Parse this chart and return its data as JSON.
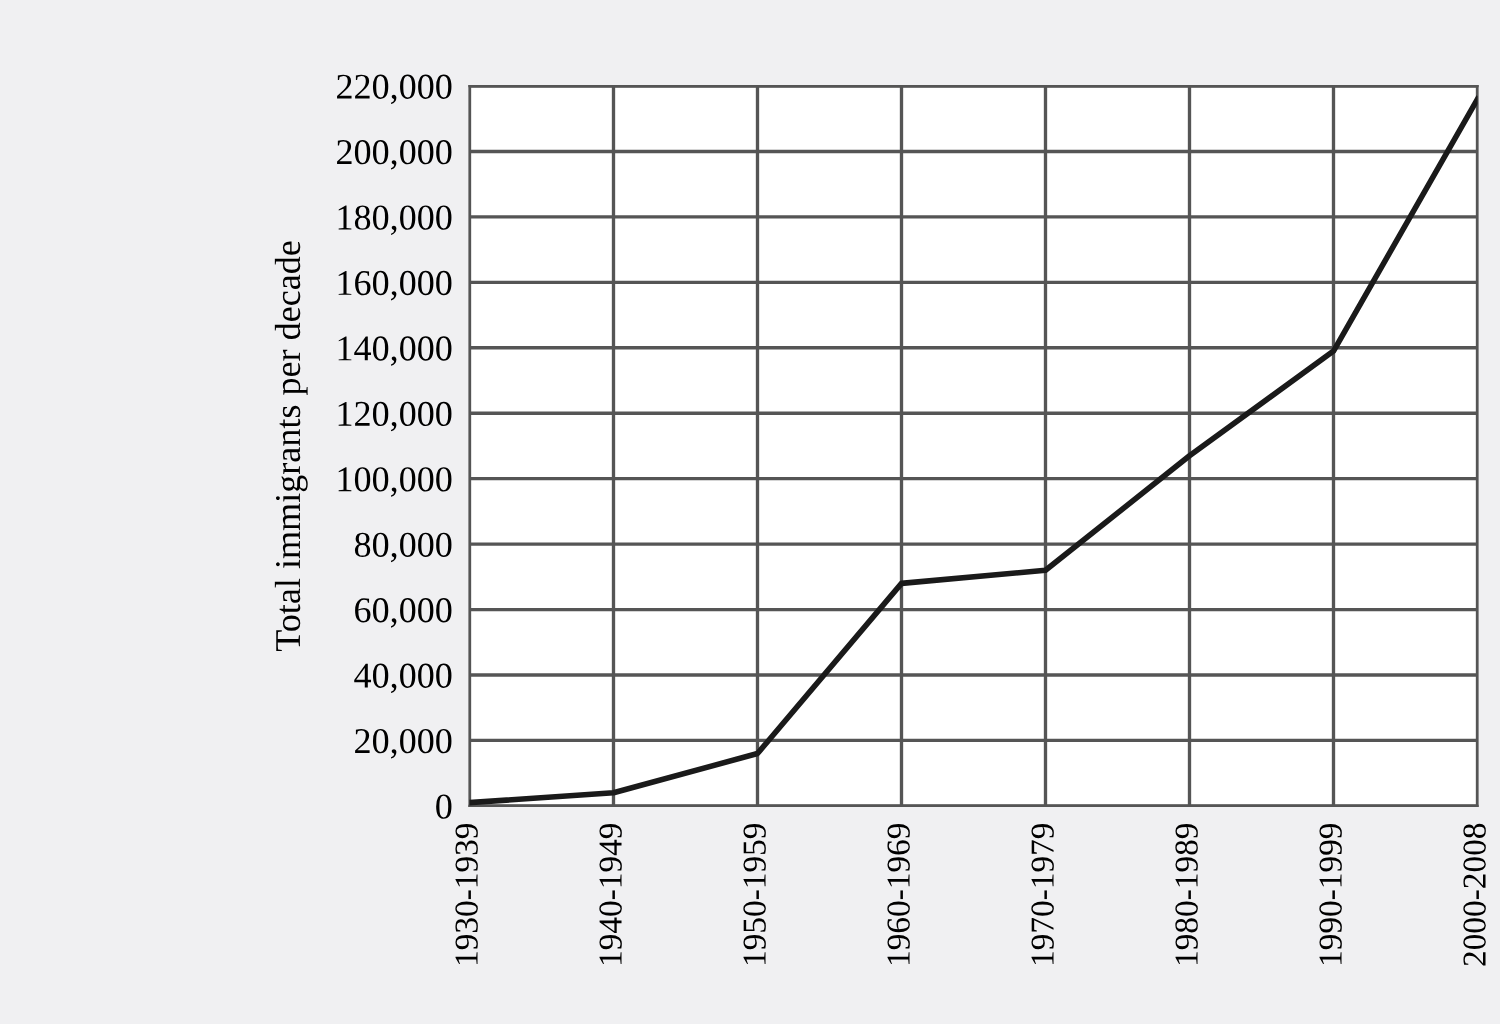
{
  "chart_data": {
    "type": "line",
    "ylabel": "Total immigrants per decade",
    "categories": [
      "1930-1939",
      "1940-1949",
      "1950-1959",
      "1960-1969",
      "1970-1979",
      "1980-1989",
      "1990-1999",
      "2000-2008"
    ],
    "series": [
      {
        "color": "#1a1a1a",
        "values": [
          1000,
          4000,
          16000,
          68000,
          72000,
          107000,
          139000,
          216000
        ]
      }
    ],
    "ylim": [
      0,
      220000
    ],
    "yticks": [
      {
        "value": 0,
        "label": "0"
      },
      {
        "value": 20000,
        "label": "20,000"
      },
      {
        "value": 40000,
        "label": "40,000"
      },
      {
        "value": 60000,
        "label": "60,000"
      },
      {
        "value": 80000,
        "label": "80,000"
      },
      {
        "value": 100000,
        "label": "100,000"
      },
      {
        "value": 120000,
        "label": "120,000"
      },
      {
        "value": 140000,
        "label": "140,000"
      },
      {
        "value": 160000,
        "label": "160,000"
      },
      {
        "value": 180000,
        "label": "180,000"
      },
      {
        "value": 200000,
        "label": "200,000"
      },
      {
        "value": 220000,
        "label": "220,000"
      }
    ],
    "grid": true,
    "marker": "none",
    "line_style": "solid"
  }
}
